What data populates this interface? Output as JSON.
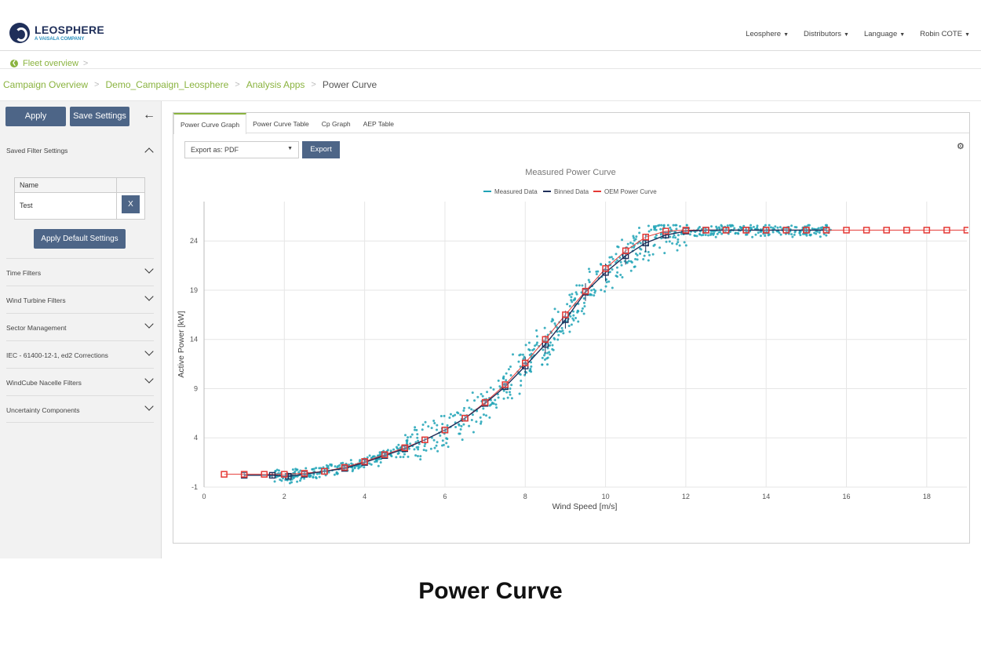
{
  "brand": {
    "name": "LEOSPHERE",
    "sub": "A VAISALA COMPANY"
  },
  "topnav": [
    {
      "label": "Leosphere"
    },
    {
      "label": "Distributors"
    },
    {
      "label": "Language"
    },
    {
      "label": "Robin COTE"
    }
  ],
  "fleet": {
    "label": "Fleet overview"
  },
  "breadcrumb": [
    "Campaign Overview",
    "Demo_Campaign_Leosphere",
    "Analysis Apps",
    "Power Curve"
  ],
  "sidebar": {
    "apply_label": "Apply",
    "save_label": "Save Settings",
    "saved_filters_label": "Saved Filter Settings",
    "table_header": "Name",
    "table_row": "Test",
    "delete_label": "X",
    "default_label": "Apply Default Settings",
    "sections": [
      "Time Filters",
      "Wind Turbine Filters",
      "Sector Management",
      "IEC - 61400-12-1, ed2 Corrections",
      "WindCube Nacelle Filters",
      "Uncertainty Components"
    ]
  },
  "tabs": [
    "Power Curve Graph",
    "Power Curve Table",
    "Cp Graph",
    "AEP Table"
  ],
  "export": {
    "select_value": "Export as: PDF",
    "button_label": "Export"
  },
  "footer_title": "Power Curve",
  "chart_data": {
    "type": "scatter",
    "title": "Measured Power Curve",
    "xlabel": "Wind Speed [m/s]",
    "ylabel": "Active Power [kW]",
    "xlim": [
      0,
      19
    ],
    "ylim": [
      -1,
      28
    ],
    "xticks": [
      0,
      2,
      4,
      6,
      8,
      10,
      12,
      14,
      16,
      18
    ],
    "yticks": [
      -1,
      4,
      9,
      14,
      19,
      24
    ],
    "grid": true,
    "legend": "top-center",
    "series": [
      {
        "name": "Measured Data",
        "color": "#1fa3b6",
        "kind": "scatter"
      },
      {
        "name": "Binned Data",
        "color": "#1f2f5a",
        "kind": "line",
        "x": [
          1,
          1.7,
          2.1,
          2.5,
          3,
          3.5,
          4,
          4.5,
          5,
          5.5,
          6,
          6.5,
          7,
          7.5,
          8,
          8.5,
          9,
          9.5,
          10,
          10.5,
          11,
          11.5,
          12,
          12.5,
          13,
          13.5,
          14,
          14.5,
          15,
          15.5
        ],
        "y": [
          0.2,
          0.2,
          0.1,
          0.3,
          0.6,
          0.9,
          1.5,
          2.2,
          2.9,
          3.8,
          4.8,
          6.0,
          7.5,
          9.2,
          11.3,
          13.5,
          16.0,
          18.8,
          20.8,
          22.5,
          23.8,
          24.6,
          25.0,
          25.1,
          25.1,
          25.1,
          25.1,
          25.1,
          25.1,
          25.1
        ]
      },
      {
        "name": "OEM Power Curve",
        "color": "#e53935",
        "kind": "line-markers",
        "x": [
          0.5,
          1,
          1.5,
          2,
          2.5,
          3,
          3.5,
          4,
          4.5,
          5,
          5.5,
          6,
          6.5,
          7,
          7.5,
          8,
          8.5,
          9,
          9.5,
          10,
          10.5,
          11,
          11.5,
          12,
          12.5,
          13,
          13.5,
          14,
          14.5,
          15,
          15.5,
          16,
          16.5,
          17,
          17.5,
          18,
          18.5,
          19
        ],
        "y": [
          0.3,
          0.3,
          0.3,
          0.3,
          0.4,
          0.6,
          1.0,
          1.6,
          2.3,
          3.0,
          3.8,
          4.8,
          6.0,
          7.6,
          9.4,
          11.6,
          14.0,
          16.5,
          18.9,
          21.2,
          23.0,
          24.4,
          25.0,
          25.1,
          25.1,
          25.1,
          25.1,
          25.1,
          25.1,
          25.1,
          25.1,
          25.1,
          25.1,
          25.1,
          25.1,
          25.1,
          25.1,
          25.1
        ]
      }
    ]
  }
}
